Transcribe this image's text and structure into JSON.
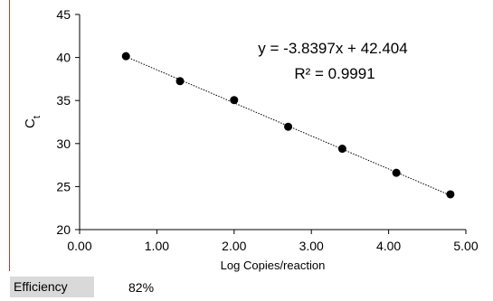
{
  "chart_data": {
    "type": "scatter",
    "x": [
      0.6,
      1.3,
      2.0,
      2.7,
      3.4,
      4.1,
      4.8
    ],
    "y": [
      40.15,
      37.25,
      35.05,
      31.95,
      29.4,
      26.6,
      24.1
    ],
    "xlabel": "Log Copies/reaction",
    "ylabel_main": "C",
    "ylabel_sub": "t",
    "xlim": [
      0,
      5
    ],
    "ylim": [
      20,
      45
    ],
    "xticks": [
      "0.00",
      "1.00",
      "2.00",
      "3.00",
      "4.00",
      "5.00"
    ],
    "yticks": [
      "20",
      "25",
      "30",
      "35",
      "40",
      "45"
    ],
    "grid": false,
    "marker_color": "#000000",
    "trendline": {
      "type": "linear",
      "slope": -3.8397,
      "intercept": 42.404,
      "style": "dotted",
      "equation": "y = -3.8397x + 42.404",
      "r_squared": "R² = 0.9991"
    }
  },
  "table": {
    "efficiency_label": "Efficiency",
    "efficiency_value": "82%"
  }
}
